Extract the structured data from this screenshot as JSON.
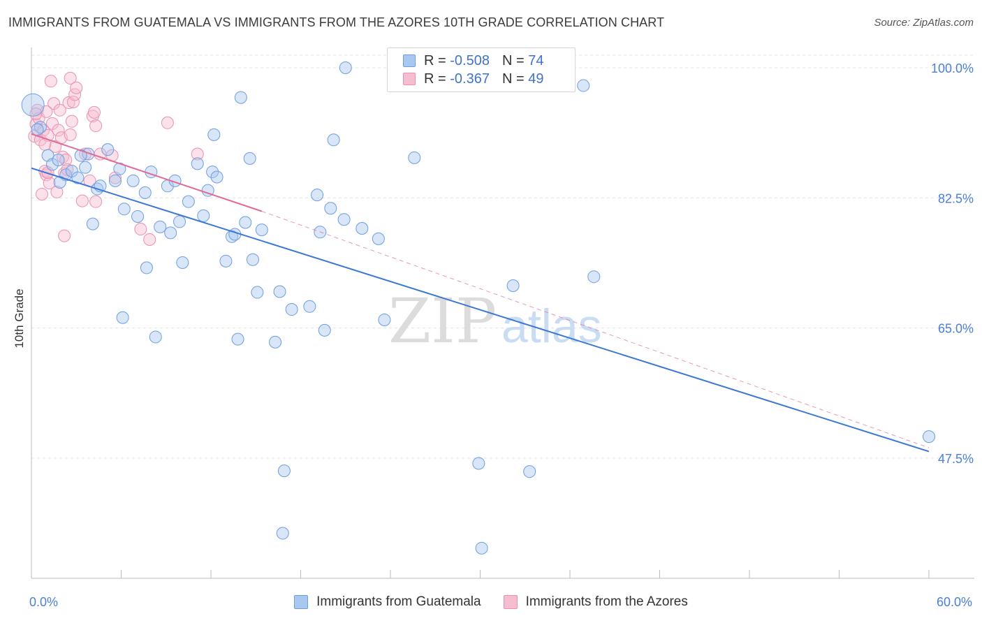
{
  "title": "IMMIGRANTS FROM GUATEMALA VS IMMIGRANTS FROM THE AZORES 10TH GRADE CORRELATION CHART",
  "source": "Source: ZipAtlas.com",
  "watermark": {
    "part1": "ZIP",
    "part2": "atlas"
  },
  "legend": {
    "rows": [
      {
        "r_label": "R =",
        "r_value": "-0.508",
        "n_label": "N =",
        "n_value": "74"
      },
      {
        "r_label": "R =",
        "r_value": "-0.367",
        "n_label": "N =",
        "n_value": "49"
      }
    ]
  },
  "bottom_legend": {
    "series_a": "Immigrants from Guatemala",
    "series_b": "Immigrants from the Azores"
  },
  "x_axis": {
    "min_label": "0.0%",
    "max_label": "60.0%"
  },
  "colors": {
    "blue_fill": "#a9c8f0",
    "blue_stroke": "#6d9de0",
    "blue_line": "#3a78d4",
    "pink_fill": "#f6bcd0",
    "pink_stroke": "#ec8fb0",
    "pink_line": "#e06b96",
    "grid": "#e3e3e3",
    "axis": "#bbbbbb",
    "tick_text": "#4a7fd6"
  },
  "chart_data": {
    "type": "scatter",
    "title": "IMMIGRANTS FROM GUATEMALA VS IMMIGRANTS FROM THE AZORES 10TH GRADE CORRELATION CHART",
    "xlabel": "",
    "ylabel": "10th Grade",
    "xlim": [
      0,
      60
    ],
    "ylim": [
      33,
      101.5
    ],
    "y_ticks": [
      100.0,
      82.5,
      65.0,
      47.5
    ],
    "y_tick_labels": [
      "100.0%",
      "82.5%",
      "65.0%",
      "47.5%"
    ],
    "grid": true,
    "series": [
      {
        "name": "Immigrants from Guatemala",
        "color": "blue",
        "r": -0.508,
        "n": 74,
        "trend": {
          "x": [
            0,
            60
          ],
          "y": [
            86.5,
            48.4
          ]
        },
        "points": [
          [
            0.1,
            95.0
          ],
          [
            0.6,
            92.0
          ],
          [
            1.1,
            88.2
          ],
          [
            1.4,
            87.0
          ],
          [
            1.8,
            87.6
          ],
          [
            2.3,
            85.6
          ],
          [
            2.7,
            86.1
          ],
          [
            3.1,
            85.2
          ],
          [
            3.6,
            86.6
          ],
          [
            3.8,
            88.4
          ],
          [
            4.1,
            79.0
          ],
          [
            4.4,
            83.7
          ],
          [
            4.6,
            84.1
          ],
          [
            5.1,
            89.0
          ],
          [
            5.6,
            84.8
          ],
          [
            5.9,
            86.4
          ],
          [
            6.2,
            81.0
          ],
          [
            6.8,
            84.8
          ],
          [
            7.1,
            80.0
          ],
          [
            7.6,
            83.2
          ],
          [
            7.7,
            73.1
          ],
          [
            8.0,
            86.0
          ],
          [
            8.3,
            63.8
          ],
          [
            8.6,
            78.6
          ],
          [
            9.1,
            84.1
          ],
          [
            9.3,
            77.8
          ],
          [
            9.6,
            84.8
          ],
          [
            9.9,
            79.3
          ],
          [
            10.1,
            73.8
          ],
          [
            10.5,
            82.0
          ],
          [
            11.1,
            87.1
          ],
          [
            11.5,
            80.1
          ],
          [
            11.8,
            83.5
          ],
          [
            12.1,
            86.0
          ],
          [
            12.2,
            91.0
          ],
          [
            13.0,
            74.0
          ],
          [
            13.4,
            77.3
          ],
          [
            13.6,
            77.6
          ],
          [
            13.8,
            63.5
          ],
          [
            14.0,
            96.0
          ],
          [
            14.3,
            79.2
          ],
          [
            14.6,
            87.8
          ],
          [
            14.8,
            74.2
          ],
          [
            15.1,
            69.8
          ],
          [
            15.4,
            78.2
          ],
          [
            16.3,
            63.1
          ],
          [
            16.6,
            69.9
          ],
          [
            16.9,
            45.8
          ],
          [
            16.8,
            37.4
          ],
          [
            17.4,
            67.5
          ],
          [
            18.6,
            67.9
          ],
          [
            19.1,
            82.9
          ],
          [
            19.3,
            77.9
          ],
          [
            19.6,
            64.7
          ],
          [
            20.2,
            90.3
          ],
          [
            20.0,
            81.1
          ],
          [
            20.9,
            79.6
          ],
          [
            21.0,
            100.0
          ],
          [
            22.1,
            78.4
          ],
          [
            23.2,
            77.0
          ],
          [
            23.6,
            66.1
          ],
          [
            25.6,
            87.9
          ],
          [
            29.9,
            46.8
          ],
          [
            30.1,
            35.4
          ],
          [
            32.2,
            70.7
          ],
          [
            33.3,
            45.7
          ],
          [
            36.9,
            97.6
          ],
          [
            37.6,
            71.9
          ],
          [
            60.0,
            50.4
          ],
          [
            0.4,
            91.7
          ],
          [
            1.9,
            84.6
          ],
          [
            3.3,
            88.2
          ],
          [
            6.1,
            66.4
          ],
          [
            12.4,
            85.3
          ]
        ]
      },
      {
        "name": "Immigrants from the Azores",
        "color": "pink",
        "r": -0.367,
        "n": 49,
        "trend": {
          "x": [
            0,
            15.4
          ],
          "y": [
            91.1,
            80.7
          ]
        },
        "trend_extension": {
          "x": [
            15.4,
            60
          ],
          "y": [
            80.7,
            48.9
          ]
        },
        "points": [
          [
            0.2,
            90.8
          ],
          [
            0.3,
            92.4
          ],
          [
            0.4,
            94.3
          ],
          [
            0.5,
            93.2
          ],
          [
            0.6,
            90.3
          ],
          [
            0.8,
            91.6
          ],
          [
            0.9,
            86.1
          ],
          [
            1.0,
            85.6
          ],
          [
            1.1,
            90.9
          ],
          [
            1.2,
            84.5
          ],
          [
            1.4,
            92.5
          ],
          [
            1.5,
            95.2
          ],
          [
            1.6,
            89.4
          ],
          [
            1.8,
            91.6
          ],
          [
            1.9,
            94.3
          ],
          [
            2.0,
            90.6
          ],
          [
            2.1,
            88.0
          ],
          [
            2.2,
            85.8
          ],
          [
            2.3,
            87.6
          ],
          [
            2.4,
            86.3
          ],
          [
            2.5,
            95.3
          ],
          [
            2.6,
            91.0
          ],
          [
            2.7,
            92.8
          ],
          [
            2.8,
            95.4
          ],
          [
            2.9,
            96.4
          ],
          [
            3.0,
            97.3
          ],
          [
            3.4,
            82.1
          ],
          [
            3.6,
            88.4
          ],
          [
            3.9,
            84.8
          ],
          [
            4.1,
            93.5
          ],
          [
            4.2,
            94.0
          ],
          [
            4.3,
            92.2
          ],
          [
            4.6,
            88.4
          ],
          [
            5.4,
            88.2
          ],
          [
            5.6,
            85.2
          ],
          [
            7.3,
            78.3
          ],
          [
            7.9,
            76.9
          ],
          [
            9.1,
            92.6
          ],
          [
            11.1,
            88.4
          ],
          [
            1.3,
            98.2
          ],
          [
            2.6,
            98.6
          ],
          [
            1.0,
            94.1
          ],
          [
            0.7,
            83.0
          ],
          [
            1.7,
            83.3
          ],
          [
            2.2,
            77.4
          ],
          [
            0.9,
            89.7
          ],
          [
            0.3,
            93.8
          ],
          [
            4.3,
            82.0
          ],
          [
            1.1,
            85.9
          ]
        ]
      }
    ]
  }
}
